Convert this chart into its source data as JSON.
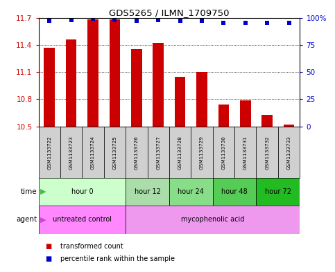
{
  "title": "GDS5265 / ILMN_1709750",
  "samples": [
    "GSM1133722",
    "GSM1133723",
    "GSM1133724",
    "GSM1133725",
    "GSM1133726",
    "GSM1133727",
    "GSM1133728",
    "GSM1133729",
    "GSM1133730",
    "GSM1133731",
    "GSM1133732",
    "GSM1133733"
  ],
  "bar_values": [
    11.37,
    11.46,
    11.68,
    11.68,
    11.35,
    11.42,
    11.05,
    11.1,
    10.74,
    10.79,
    10.63,
    10.52
  ],
  "percentile_values": [
    97,
    98,
    99,
    98,
    97,
    98,
    97,
    97,
    95,
    95,
    95,
    95
  ],
  "bar_color": "#cc0000",
  "percentile_color": "#0000cc",
  "ymin": 10.5,
  "ymax": 11.7,
  "yticks": [
    10.5,
    10.8,
    11.1,
    11.4,
    11.7
  ],
  "ytick_labels": [
    "10.5",
    "10.8",
    "11.1",
    "11.4",
    "11.7"
  ],
  "right_yticks": [
    0,
    25,
    50,
    75,
    100
  ],
  "right_ytick_labels": [
    "0",
    "25",
    "50",
    "75",
    "100%"
  ],
  "time_groups": [
    {
      "label": "hour 0",
      "indices": [
        0,
        1,
        2,
        3
      ],
      "color": "#ccffcc"
    },
    {
      "label": "hour 12",
      "indices": [
        4,
        5
      ],
      "color": "#aaddaa"
    },
    {
      "label": "hour 24",
      "indices": [
        6,
        7
      ],
      "color": "#88dd88"
    },
    {
      "label": "hour 48",
      "indices": [
        8,
        9
      ],
      "color": "#55cc55"
    },
    {
      "label": "hour 72",
      "indices": [
        10,
        11
      ],
      "color": "#22bb22"
    }
  ],
  "agent_groups": [
    {
      "label": "untreated control",
      "indices": [
        0,
        1,
        2,
        3
      ],
      "color": "#ff88ff"
    },
    {
      "label": "mycophenolic acid",
      "indices": [
        4,
        5,
        6,
        7,
        8,
        9,
        10,
        11
      ],
      "color": "#ee99ee"
    }
  ],
  "legend_bar_label": "transformed count",
  "legend_pct_label": "percentile rank within the sample",
  "time_label": "time",
  "agent_label": "agent",
  "sample_box_color": "#d0d0d0",
  "figsize": [
    4.83,
    3.93
  ],
  "dpi": 100
}
